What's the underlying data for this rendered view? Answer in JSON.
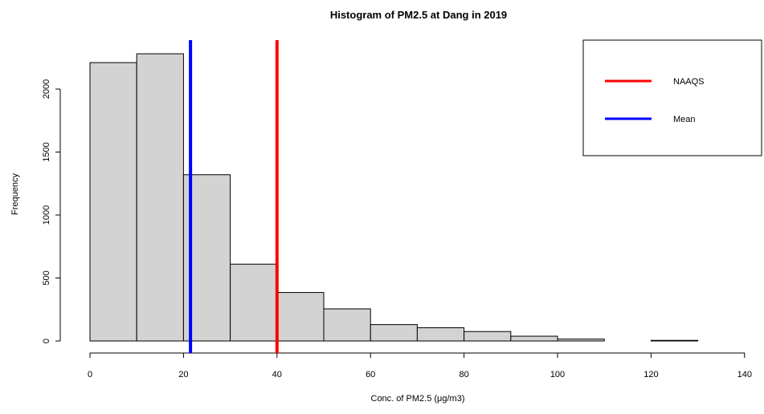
{
  "chart_data": {
    "type": "bar",
    "title": "Histogram of PM2.5 at Dang in 2019",
    "xlabel": "Conc. of PM2.5 (μg/m3)",
    "ylabel": "Frequency",
    "xlim": [
      0,
      140
    ],
    "ylim": [
      0,
      2300
    ],
    "x_ticks": [
      0,
      20,
      40,
      60,
      80,
      100,
      120,
      140
    ],
    "y_ticks": [
      0,
      500,
      1000,
      1500,
      2000
    ],
    "bin_edges": [
      0,
      10,
      20,
      30,
      40,
      50,
      60,
      70,
      80,
      90,
      100,
      110,
      120,
      130
    ],
    "values": [
      2210,
      2280,
      1320,
      610,
      385,
      255,
      130,
      105,
      75,
      38,
      15,
      0,
      5
    ],
    "bar_fill": "#d3d3d3",
    "bar_stroke": "#000000",
    "reference_lines": [
      {
        "name": "NAAQS",
        "x": 40,
        "color": "#ff0000"
      },
      {
        "name": "Mean",
        "x": 21.5,
        "color": "#0000ff"
      }
    ],
    "legend": {
      "placement": "top-right",
      "entries": [
        {
          "label": "NAAQS",
          "color": "#ff0000"
        },
        {
          "label": "Mean",
          "color": "#0000ff"
        }
      ]
    },
    "grid": false
  }
}
